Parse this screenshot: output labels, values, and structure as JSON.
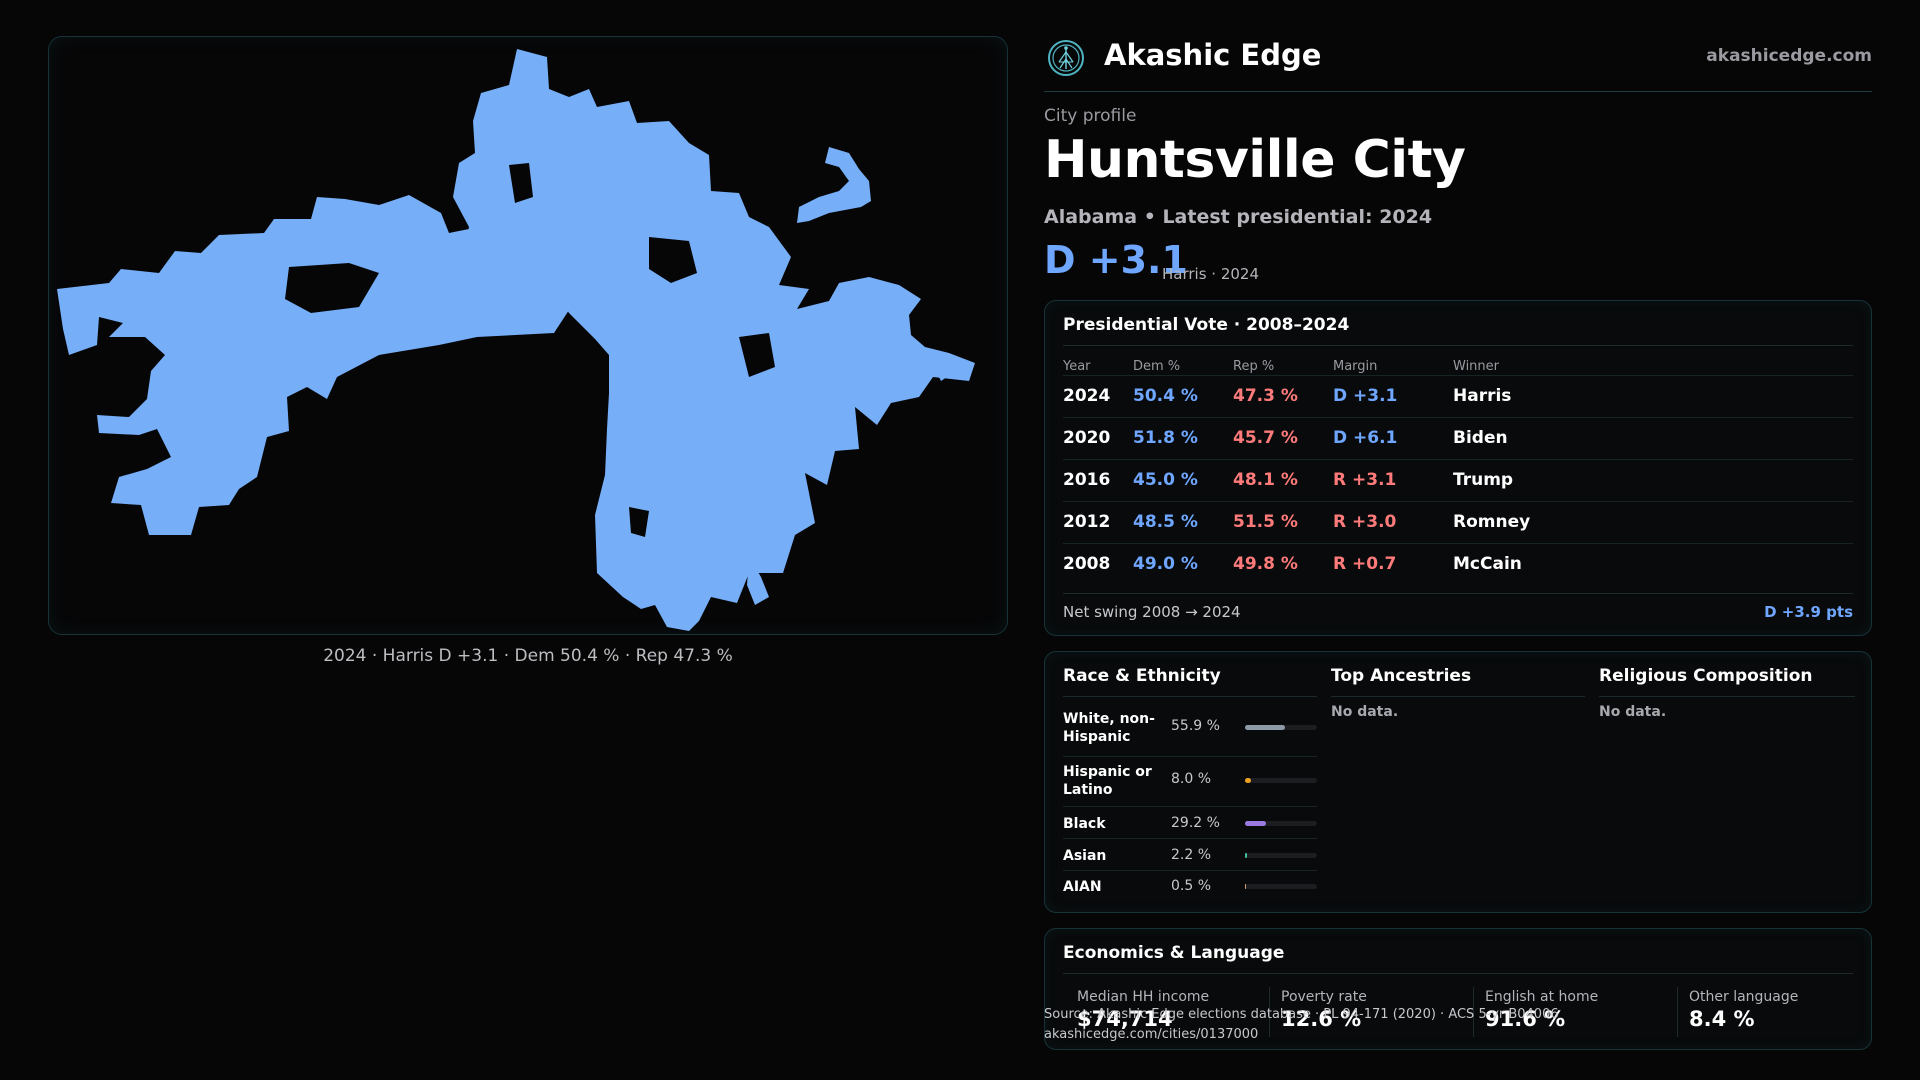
{
  "brand": {
    "name": "Akashic Edge",
    "url": "akashicedge.com",
    "logo_icon": "tree-of-life-icon"
  },
  "profile": {
    "kicker": "City profile",
    "city": "Huntsville City",
    "subline": "Alabama • Latest presidential: 2024",
    "margin": "D +3.1",
    "margin_note": "Harris · 2024"
  },
  "map": {
    "caption": "2024 · Harris D +3.1 · Dem 50.4 % · Rep 47.3 %",
    "fill_color": "#76aef8"
  },
  "vote": {
    "title": "Presidential Vote · 2008–2024",
    "headers": {
      "year": "Year",
      "dem": "Dem %",
      "rep": "Rep %",
      "margin": "Margin",
      "winner": "Winner"
    },
    "rows": [
      {
        "year": "2024",
        "dem": "50.4 %",
        "rep": "47.3 %",
        "margin": "D +3.1",
        "party": "D",
        "winner": "Harris"
      },
      {
        "year": "2020",
        "dem": "51.8 %",
        "rep": "45.7 %",
        "margin": "D +6.1",
        "party": "D",
        "winner": "Biden"
      },
      {
        "year": "2016",
        "dem": "45.0 %",
        "rep": "48.1 %",
        "margin": "R +3.1",
        "party": "R",
        "winner": "Trump"
      },
      {
        "year": "2012",
        "dem": "48.5 %",
        "rep": "51.5 %",
        "margin": "R +3.0",
        "party": "R",
        "winner": "Romney"
      },
      {
        "year": "2008",
        "dem": "49.0 %",
        "rep": "49.8 %",
        "margin": "R +0.7",
        "party": "R",
        "winner": "McCain"
      }
    ],
    "swing_label": "Net swing 2008 → 2024",
    "swing_value": "D +3.9 pts"
  },
  "race": {
    "title": "Race & Ethnicity",
    "rows": [
      {
        "label": "White, non-Hispanic",
        "pct": "55.9 %",
        "value": 55.9,
        "color": "#8f9aa8"
      },
      {
        "label": "Hispanic or Latino",
        "pct": "8.0 %",
        "value": 8.0,
        "color": "#f0a020"
      },
      {
        "label": "Black",
        "pct": "29.2 %",
        "value": 29.2,
        "color": "#9a7ae0"
      },
      {
        "label": "Asian",
        "pct": "2.2 %",
        "value": 2.2,
        "color": "#3fc0a0"
      },
      {
        "label": "AIAN",
        "pct": "0.5 %",
        "value": 0.5,
        "color": "#d0a070"
      }
    ]
  },
  "ancestries": {
    "title": "Top Ancestries",
    "empty": "No data."
  },
  "religion": {
    "title": "Religious Composition",
    "empty": "No data."
  },
  "economics": {
    "title": "Economics & Language",
    "items": [
      {
        "label": "Median HH income",
        "value": "$74,714"
      },
      {
        "label": "Poverty rate",
        "value": "12.6 %"
      },
      {
        "label": "English at home",
        "value": "91.6 %"
      },
      {
        "label": "Other language",
        "value": "8.4 %"
      }
    ]
  },
  "source": {
    "line1": "Source: Akashic Edge elections database · PL 94-171 (2020) · ACS 5-yr B04006",
    "line2": "akashicedge.com/cities/0137000"
  }
}
